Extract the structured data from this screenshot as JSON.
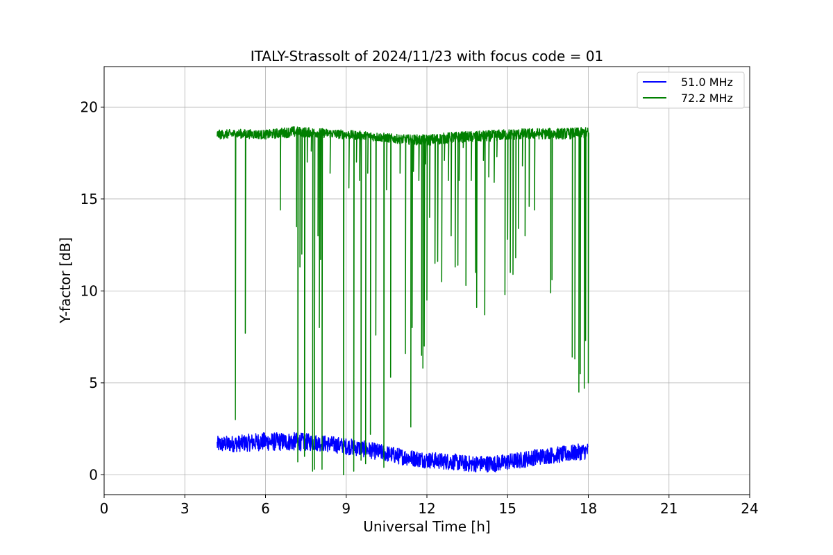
{
  "chart_data": {
    "type": "line",
    "title": "ITALY-Strassolt of 2024/11/23 with focus code = 01",
    "xlabel": "Universal Time [h]",
    "ylabel": "Y-factor [dB]",
    "xlim": [
      0,
      24
    ],
    "ylim": [
      -1.08,
      22.2
    ],
    "xticks": [
      0,
      3,
      6,
      9,
      12,
      15,
      18,
      21,
      24
    ],
    "yticks": [
      0,
      5,
      10,
      15,
      20
    ],
    "grid": true,
    "legend_position": "top-right",
    "series": [
      {
        "name": "51.0 MHz",
        "color": "#0000ff",
        "x": [
          4.2,
          5.0,
          5.8,
          6.5,
          7.2,
          7.9,
          8.5,
          9.0,
          9.5,
          10.0,
          10.5,
          11.0,
          11.5,
          12.0,
          12.5,
          13.0,
          13.5,
          14.0,
          14.5,
          15.0,
          15.5,
          16.0,
          16.5,
          17.0,
          17.5,
          18.0
        ],
        "center": [
          1.65,
          1.7,
          1.8,
          1.8,
          1.8,
          1.75,
          1.65,
          1.55,
          1.45,
          1.3,
          1.15,
          1.0,
          0.9,
          0.8,
          0.75,
          0.7,
          0.6,
          0.6,
          0.6,
          0.7,
          0.8,
          0.95,
          1.05,
          1.1,
          1.2,
          1.3
        ],
        "amplitude": [
          0.45,
          0.45,
          0.5,
          0.5,
          0.5,
          0.45,
          0.45,
          0.45,
          0.45,
          0.45,
          0.45,
          0.45,
          0.45,
          0.45,
          0.45,
          0.45,
          0.45,
          0.45,
          0.45,
          0.45,
          0.45,
          0.45,
          0.45,
          0.45,
          0.45,
          0.45
        ]
      },
      {
        "name": "72.2 MHz",
        "color": "#008000",
        "x": [
          4.2,
          5.0,
          6.0,
          7.0,
          8.0,
          9.0,
          10.0,
          11.0,
          12.0,
          13.0,
          14.0,
          15.0,
          16.0,
          17.0,
          18.0
        ],
        "center": [
          18.5,
          18.55,
          18.5,
          18.65,
          18.6,
          18.5,
          18.4,
          18.25,
          18.2,
          18.35,
          18.4,
          18.5,
          18.55,
          18.55,
          18.6
        ],
        "amplitude": [
          0.25,
          0.25,
          0.25,
          0.3,
          0.25,
          0.25,
          0.25,
          0.25,
          0.3,
          0.3,
          0.3,
          0.3,
          0.3,
          0.3,
          0.3
        ],
        "spikes": [
          [
            4.88,
            3.0
          ],
          [
            5.25,
            7.7
          ],
          [
            6.55,
            14.4
          ],
          [
            7.15,
            13.5
          ],
          [
            7.2,
            0.7
          ],
          [
            7.28,
            11.3
          ],
          [
            7.35,
            12.0
          ],
          [
            7.45,
            1.0
          ],
          [
            7.55,
            17.0
          ],
          [
            7.7,
            17.6
          ],
          [
            7.75,
            0.2
          ],
          [
            7.82,
            0.3
          ],
          [
            7.95,
            13.0
          ],
          [
            8.0,
            8.0
          ],
          [
            8.05,
            11.7
          ],
          [
            8.1,
            0.3
          ],
          [
            8.4,
            16.4
          ],
          [
            8.9,
            0.0
          ],
          [
            9.1,
            15.6
          ],
          [
            9.28,
            0.2
          ],
          [
            9.38,
            17.0
          ],
          [
            9.5,
            16.0
          ],
          [
            9.55,
            0.8
          ],
          [
            9.72,
            0.6
          ],
          [
            9.8,
            16.4
          ],
          [
            9.9,
            2.2
          ],
          [
            10.1,
            7.6
          ],
          [
            10.4,
            0.4
          ],
          [
            10.5,
            15.5
          ],
          [
            10.65,
            5.3
          ],
          [
            11.0,
            16.4
          ],
          [
            11.2,
            6.6
          ],
          [
            11.4,
            2.6
          ],
          [
            11.45,
            8.0
          ],
          [
            11.5,
            16.5
          ],
          [
            11.7,
            16.0
          ],
          [
            11.8,
            6.5
          ],
          [
            11.85,
            5.8
          ],
          [
            11.9,
            7.0
          ],
          [
            11.95,
            16.9
          ],
          [
            12.0,
            9.5
          ],
          [
            12.1,
            14.0
          ],
          [
            12.3,
            11.5
          ],
          [
            12.4,
            11.6
          ],
          [
            12.55,
            10.5
          ],
          [
            12.65,
            17.1
          ],
          [
            12.8,
            16.0
          ],
          [
            12.9,
            13.0
          ],
          [
            13.05,
            11.3
          ],
          [
            13.15,
            11.4
          ],
          [
            13.2,
            16.0
          ],
          [
            13.35,
            17.8
          ],
          [
            13.45,
            10.3
          ],
          [
            13.65,
            16.0
          ],
          [
            13.8,
            11.0
          ],
          [
            13.85,
            9.1
          ],
          [
            14.1,
            17.1
          ],
          [
            14.15,
            8.7
          ],
          [
            14.3,
            16.2
          ],
          [
            14.5,
            15.9
          ],
          [
            14.6,
            17.3
          ],
          [
            14.9,
            9.8
          ],
          [
            15.0,
            12.8
          ],
          [
            15.1,
            11.0
          ],
          [
            15.2,
            10.9
          ],
          [
            15.3,
            11.8
          ],
          [
            15.4,
            13.4
          ],
          [
            15.55,
            16.8
          ],
          [
            15.65,
            13.0
          ],
          [
            15.8,
            14.6
          ],
          [
            16.0,
            14.4
          ],
          [
            16.6,
            9.9
          ],
          [
            16.65,
            10.6
          ],
          [
            17.4,
            6.4
          ],
          [
            17.5,
            6.3
          ],
          [
            17.65,
            4.5
          ],
          [
            17.7,
            5.5
          ],
          [
            17.85,
            4.7
          ],
          [
            17.9,
            7.3
          ],
          [
            18.0,
            5.0
          ]
        ]
      }
    ]
  }
}
